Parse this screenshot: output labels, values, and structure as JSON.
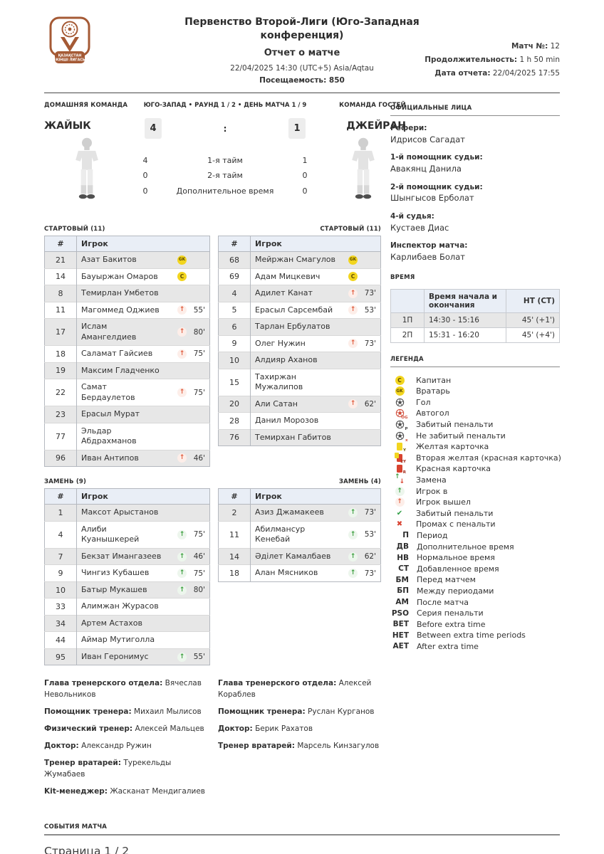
{
  "header": {
    "competition": "Первенство Второй-Лиги (Юго-Западная конференция)",
    "report_title": "Отчет о матче",
    "datetime": "22/04/2025 14:30 (UTC+5) Asia/Aqtau",
    "attendance": "Посещаемость: 850",
    "match_no_label": "Матч №:",
    "match_no": "12",
    "duration_label": "Продолжительность:",
    "duration": "1 h 50 min",
    "report_date_label": "Дата отчета:",
    "report_date": "22/04/2025 17:55"
  },
  "logo": {
    "banner_line1": "ҚАЗАҚСТАН",
    "banner_line2": "ЕКІНШІ ЛИГАСЫ",
    "accent_color": "#a55a35"
  },
  "teams": {
    "home_label": "ДОМАШНЯЯ КОМАНДА",
    "home_name": "ЖАЙЫК",
    "away_label": "КОМАНДА ГОСТЕЙ",
    "away_name": "ДЖЕЙРАН",
    "context": "ЮГО-ЗАПАД • РАУНД 1 / 2 • ДЕНЬ МАТЧА 1 / 9",
    "score_home": "4",
    "score_sep": ":",
    "score_away": "1",
    "periods": [
      {
        "home": "4",
        "label": "1-я тайм",
        "away": "1"
      },
      {
        "home": "0",
        "label": "2-я тайм",
        "away": "0"
      },
      {
        "home": "0",
        "label": "Дополнительное время",
        "away": "0"
      }
    ]
  },
  "lineups": {
    "col_num": "#",
    "col_player": "Игрок",
    "home_start_title": "СТАРТОВЫЙ (11)",
    "away_start_title": "СТАРТОВЫЙ (11)",
    "home_subs_title": "ЗАМЕНЬ (9)",
    "away_subs_title": "ЗАМЕНЬ (4)",
    "home_start": [
      {
        "num": "21",
        "name": "Азат Бакитов",
        "badge": "GK"
      },
      {
        "num": "14",
        "name": "Бауыржан Омаров",
        "badge": "C"
      },
      {
        "num": "8",
        "name": "Темирлан Умбетов"
      },
      {
        "num": "11",
        "name": "Магоммед Оджиев",
        "event": "out",
        "min": "55'"
      },
      {
        "num": "17",
        "name": "Ислам Амангелдиев",
        "event": "out",
        "min": "80'"
      },
      {
        "num": "18",
        "name": "Саламат Гайсиев",
        "event": "out",
        "min": "75'"
      },
      {
        "num": "19",
        "name": "Максим Гладченко"
      },
      {
        "num": "22",
        "name": "Самат Бердаулетов",
        "event": "out",
        "min": "75'"
      },
      {
        "num": "23",
        "name": "Ерасыл Мурат"
      },
      {
        "num": "77",
        "name": "Эльдар Абдрахманов"
      },
      {
        "num": "96",
        "name": "Иван Антипов",
        "event": "out",
        "min": "46'"
      }
    ],
    "away_start": [
      {
        "num": "68",
        "name": "Мейржан Смагулов",
        "badge": "GK"
      },
      {
        "num": "69",
        "name": "Адам Мицкевич",
        "badge": "C"
      },
      {
        "num": "4",
        "name": "Адилет Канат",
        "event": "out",
        "min": "73'"
      },
      {
        "num": "5",
        "name": "Ерасыл Сарсембай",
        "event": "out",
        "min": "53'"
      },
      {
        "num": "6",
        "name": "Тарлан Ербулатов"
      },
      {
        "num": "9",
        "name": "Олег Нужин",
        "event": "out",
        "min": "73'"
      },
      {
        "num": "10",
        "name": "Алдияр Аханов"
      },
      {
        "num": "15",
        "name": "Тахиржан Мужалипов"
      },
      {
        "num": "20",
        "name": "Али Сатан",
        "event": "out",
        "min": "62'"
      },
      {
        "num": "28",
        "name": "Данил Морозов"
      },
      {
        "num": "76",
        "name": "Темирхан Габитов"
      }
    ],
    "home_subs": [
      {
        "num": "1",
        "name": "Максот Арыстанов"
      },
      {
        "num": "4",
        "name": "Алиби Куанышкерей",
        "event": "in",
        "min": "75'"
      },
      {
        "num": "7",
        "name": "Бекзат Имангазеев",
        "event": "in",
        "min": "46'"
      },
      {
        "num": "9",
        "name": "Чингиз Кубашев",
        "event": "in",
        "min": "75'"
      },
      {
        "num": "10",
        "name": "Батыр Мукашев",
        "event": "in",
        "min": "80'"
      },
      {
        "num": "33",
        "name": "Алимжан Журасов"
      },
      {
        "num": "34",
        "name": "Артем Астахов"
      },
      {
        "num": "44",
        "name": "Аймар Мутиголла"
      },
      {
        "num": "95",
        "name": "Иван Геронимус",
        "event": "in",
        "min": "55'"
      }
    ],
    "away_subs": [
      {
        "num": "2",
        "name": "Азиз Джамакеев",
        "event": "in",
        "min": "73'"
      },
      {
        "num": "11",
        "name": "Абилмансур Кенебай",
        "event": "in",
        "min": "53'"
      },
      {
        "num": "14",
        "name": "Әділет Камалбаев",
        "event": "in",
        "min": "62'"
      },
      {
        "num": "18",
        "name": "Алан Мясников",
        "event": "in",
        "min": "73'"
      }
    ]
  },
  "staff": {
    "home": [
      {
        "role": "Глава тренерского отдела:",
        "name": "Вячеслав Невольников"
      },
      {
        "role": "Помощник тренера:",
        "name": "Михаил Мылисов"
      },
      {
        "role": "Физический тренер:",
        "name": "Алексей Мальцев"
      },
      {
        "role": "Доктор:",
        "name": "Александр Ружин"
      },
      {
        "role": "Тренер вратарей:",
        "name": "Турекельды Жумабаев"
      },
      {
        "role": "Kit-менеджер:",
        "name": "Жасканат Мендигалиев"
      }
    ],
    "away": [
      {
        "role": "Глава тренерского отдела:",
        "name": "Алексей Кораблев"
      },
      {
        "role": "Помощник тренера:",
        "name": "Руслан Курганов"
      },
      {
        "role": "Доктор:",
        "name": "Берик Рахатов"
      },
      {
        "role": "Тренер вратарей:",
        "name": "Марсель Кинзагулов"
      }
    ]
  },
  "officials": {
    "title": "ОФИЦИАЛЬНЫЕ ЛИЦА",
    "entries": [
      {
        "role": "Рефери:",
        "name": "Идрисов Сагадат"
      },
      {
        "role": "1-й помощник судьи:",
        "name": "Авакянц Данила"
      },
      {
        "role": "2-й помощник судьи:",
        "name": "Шынгысов Ерболат"
      },
      {
        "role": "4-й судья:",
        "name": "Кустаев Диас"
      },
      {
        "role": "Инспектор матча:",
        "name": "Карлибаев Болат"
      }
    ]
  },
  "time": {
    "title": "ВРЕМЯ",
    "col_range": "Время начала и окончания",
    "col_ht": "НТ (СТ)",
    "rows": [
      {
        "period": "1П",
        "range": "14:30 - 15:16",
        "ht": "45' (+1')"
      },
      {
        "period": "2П",
        "range": "15:31 - 16:20",
        "ht": "45' (+4')"
      }
    ]
  },
  "legend": {
    "title": "ЛЕГЕНДА",
    "items": [
      {
        "icon": "C",
        "label": "Капитан"
      },
      {
        "icon": "GK",
        "label": "Вратарь"
      },
      {
        "icon": "goal",
        "label": "Гол"
      },
      {
        "icon": "own-goal",
        "label": "Автогол"
      },
      {
        "icon": "pen-goal",
        "label": "Забитый пенальти"
      },
      {
        "icon": "pen-nogoal",
        "label": "Не забитый пенальти"
      },
      {
        "icon": "yellow-card",
        "label": "Желтая карточка"
      },
      {
        "icon": "second-yellow-card",
        "label": "Вторая желтая (красная карточка)"
      },
      {
        "icon": "red-card",
        "label": "Красная карточка"
      },
      {
        "icon": "substitution",
        "label": "Замена"
      },
      {
        "icon": "sub-in",
        "label": "Игрок в"
      },
      {
        "icon": "sub-out",
        "label": "Игрок вышел"
      },
      {
        "icon": "pen-check",
        "label": "Забитый пенальти"
      },
      {
        "icon": "pen-cross",
        "label": "Промах с пенальти"
      },
      {
        "abbr": "П",
        "label": "Период"
      },
      {
        "abbr": "ДВ",
        "label": "Дополнительное время"
      },
      {
        "abbr": "НВ",
        "label": "Нормальное время"
      },
      {
        "abbr": "СТ",
        "label": "Добавленное время"
      },
      {
        "abbr": "БМ",
        "label": "Перед матчем"
      },
      {
        "abbr": "БП",
        "label": "Между периодами"
      },
      {
        "abbr": "АМ",
        "label": "После матча"
      },
      {
        "abbr": "PSO",
        "label": "Серия пенальти"
      },
      {
        "abbr": "BET",
        "label": "Before extra time"
      },
      {
        "abbr": "HET",
        "label": "Between extra time periods"
      },
      {
        "abbr": "AET",
        "label": "After extra time"
      }
    ]
  },
  "events": {
    "title": "СОБЫТИЯ МАТЧА"
  },
  "footer": {
    "page": "Страница 1 / 2"
  },
  "colors": {
    "accent_copper": "#a55a35",
    "table_header_bg": "#e9eef6",
    "zebra_bg": "#e7e7e7",
    "yellow_badge": "#f2d51f",
    "green_in": "#3a9e3d",
    "red_out": "#e05b3d",
    "red_card": "#d8432f"
  }
}
